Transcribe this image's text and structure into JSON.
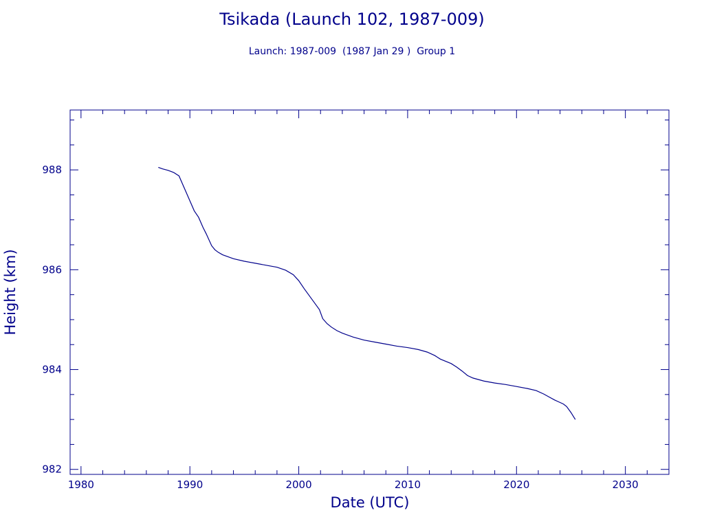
{
  "chart_data": {
    "type": "line",
    "title": "Tsikada (Launch 102, 1987-009)",
    "subtitle": "Launch: 1987-009  (1987 Jan 29 )  Group 1",
    "xlabel": "Date (UTC)",
    "ylabel": "Height (km)",
    "xlim": [
      1979,
      2034
    ],
    "ylim": [
      981.9,
      989.2
    ],
    "x_ticks": [
      1980,
      1990,
      2000,
      2010,
      2020,
      2030
    ],
    "y_ticks": [
      982,
      984,
      986,
      988
    ],
    "grid": false,
    "line_color": "#00008b",
    "series": [
      {
        "x": [
          1987.1,
          1987.5,
          1988.0,
          1988.5,
          1989.0,
          1989.3,
          1989.6,
          1990.0,
          1990.4,
          1990.8,
          1991.2,
          1991.5,
          1992.0,
          1992.3,
          1992.6,
          1993.0,
          1994.0,
          1995.0,
          1996.0,
          1997.0,
          1998.0,
          1998.8,
          1999.5,
          2000.0,
          2000.5,
          2001.0,
          2001.5,
          2001.9,
          2002.2,
          2002.6,
          2003.0,
          2003.5,
          2004.0,
          2005.0,
          2006.0,
          2007.0,
          2008.0,
          2009.0,
          2010.0,
          2011.0,
          2011.8,
          2012.5,
          2013.0,
          2014.0,
          2014.5,
          2015.0,
          2015.5,
          2016.0,
          2017.0,
          2018.0,
          2019.0,
          2020.0,
          2021.0,
          2021.8,
          2022.5,
          2023.0,
          2023.5,
          2023.8,
          2024.3,
          2024.6,
          2025.0,
          2025.4
        ],
        "y": [
          988.05,
          988.02,
          987.99,
          987.95,
          987.88,
          987.73,
          987.58,
          987.38,
          987.18,
          987.05,
          986.85,
          986.72,
          986.48,
          986.4,
          986.35,
          986.3,
          986.22,
          986.17,
          986.13,
          986.09,
          986.05,
          985.99,
          985.9,
          985.78,
          985.62,
          985.47,
          985.32,
          985.2,
          985.02,
          984.92,
          984.85,
          984.78,
          984.73,
          984.65,
          984.59,
          984.55,
          984.51,
          984.47,
          984.44,
          984.4,
          984.35,
          984.28,
          984.21,
          984.12,
          984.05,
          983.97,
          983.88,
          983.83,
          983.77,
          983.73,
          983.7,
          983.66,
          983.62,
          983.58,
          983.51,
          983.45,
          983.39,
          983.36,
          983.31,
          983.26,
          983.14,
          983.0
        ]
      }
    ]
  }
}
